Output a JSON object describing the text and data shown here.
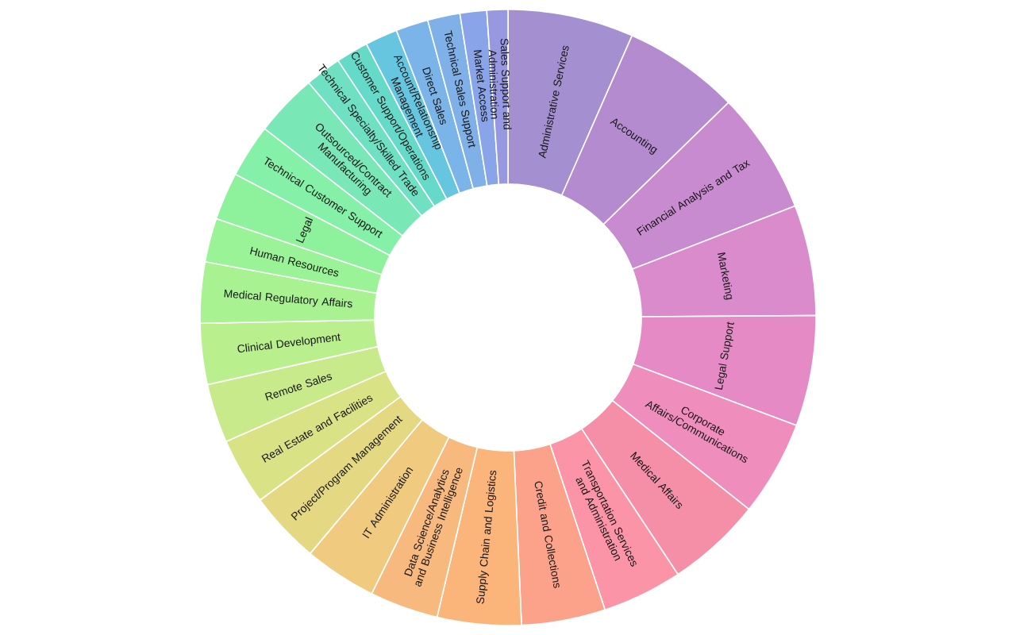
{
  "chart_data": {
    "type": "donut",
    "categories": [
      "Administrative Services",
      "Accounting",
      "Financial Analysis and Tax",
      "Marketing",
      "Legal Support",
      "Corporate Affairs/Communications",
      "Medical Affairs",
      "Transportation Services and Administration",
      "Credit and Collections",
      "Supply Chain and Logistics",
      "Data Science/Analytics and Business Intelligence",
      "IT Administration",
      "Project/Program Management",
      "Real Estate and Facilities",
      "Remote Sales",
      "Clinical Development",
      "Medical Regulatory Affairs",
      "Human Resources",
      "Legal",
      "Technical Customer Support",
      "Outsourced/Contract Manufacturing",
      "Technical Specialty/Skilled Trade",
      "Customer Support/Operations",
      "Account/Relationship Management",
      "Direct Sales",
      "Technical Sales Support",
      "Market Access",
      "Sales Support and Administration"
    ],
    "values": [
      6.6,
      6.1,
      6.4,
      5.8,
      5.8,
      5.0,
      5.0,
      4.2,
      4.4,
      4.4,
      3.6,
      3.8,
      3.8,
      3.5,
      3.1,
      3.2,
      3.2,
      2.3,
      2.5,
      2.8,
      3.3,
      1.9,
      1.7,
      1.7,
      1.7,
      1.7,
      1.4,
      1.1
    ],
    "colors": [
      "#a48fd0",
      "#b58bd0",
      "#c88bcf",
      "#d98bcc",
      "#e58ac5",
      "#ef8ebc",
      "#f58fa8",
      "#fb94a6",
      "#fca28a",
      "#fbb47a",
      "#f8b97e",
      "#f0ca7e",
      "#e5d882",
      "#d9e285",
      "#c9ea8a",
      "#baef8e",
      "#a8f292",
      "#9af396",
      "#8ef29c",
      "#85f0a8",
      "#7ae8b6",
      "#6fe0c2",
      "#66dac8",
      "#66c6e0",
      "#7ab4e8",
      "#7fb0e8",
      "#8aa4ea",
      "#9898e0"
    ]
  }
}
